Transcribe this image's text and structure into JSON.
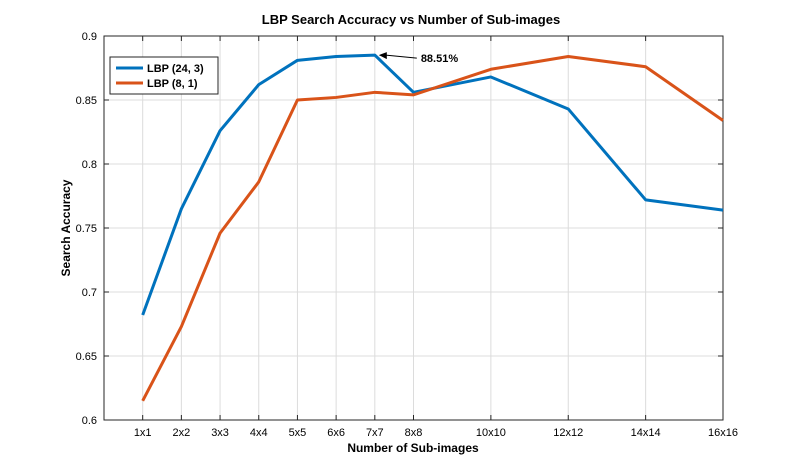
{
  "chart_data": {
    "type": "line",
    "title": "LBP Search Accuracy vs Number of Sub-images",
    "xlabel": "Number of Sub-images",
    "ylabel": "Search Accuracy",
    "x": [
      1,
      2,
      3,
      4,
      5,
      6,
      7,
      8,
      10,
      12,
      14,
      16
    ],
    "xticks": [
      "1x1",
      "2x2",
      "3x3",
      "4x4",
      "5x5",
      "6x6",
      "7x7",
      "8x8",
      "10x10",
      "12x12",
      "14x14",
      "16x16"
    ],
    "xlim": [
      0,
      16
    ],
    "ylim": [
      0.6,
      0.9
    ],
    "yticks": [
      "0.6",
      "0.65",
      "0.7",
      "0.75",
      "0.8",
      "0.85",
      "0.9"
    ],
    "grid": true,
    "legend": "top-left",
    "series": [
      {
        "name": "LBP (24, 3)",
        "color": "#0072BD",
        "values": [
          0.682,
          0.765,
          0.826,
          0.862,
          0.881,
          0.884,
          0.8851,
          0.856,
          0.868,
          0.843,
          0.772,
          0.764
        ]
      },
      {
        "name": "LBP (8, 1)",
        "color": "#D95319",
        "values": [
          0.615,
          0.673,
          0.746,
          0.786,
          0.85,
          0.852,
          0.856,
          0.854,
          0.874,
          0.884,
          0.876,
          0.834
        ]
      }
    ],
    "annotations": [
      {
        "text": "88.51%",
        "x": 7,
        "y": 0.8851
      }
    ]
  }
}
